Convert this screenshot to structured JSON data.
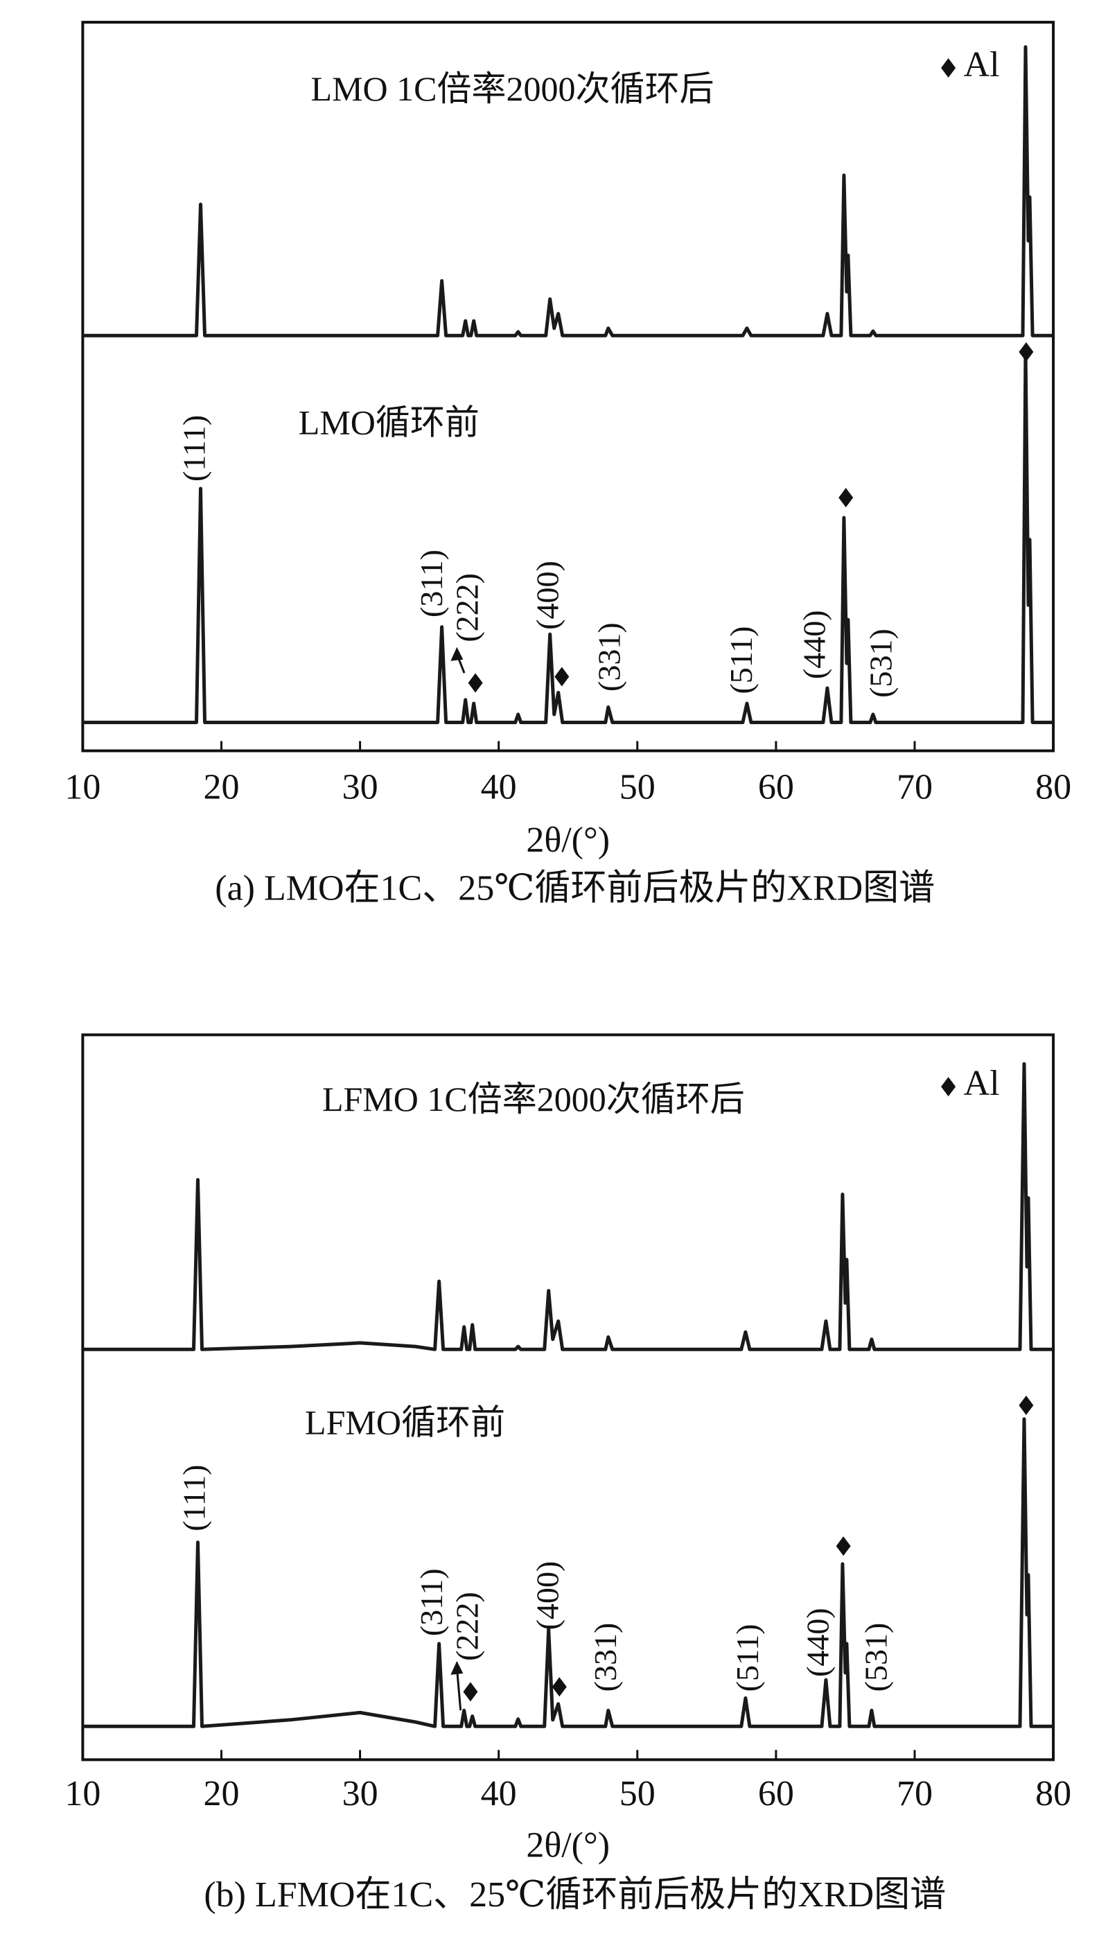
{
  "chart_data": [
    {
      "type": "line",
      "x": [
        10,
        18.2,
        18.5,
        18.8,
        35.6,
        35.9,
        36.2,
        37.4,
        37.6,
        37.8,
        38.0,
        38.2,
        38.4,
        41.2,
        41.4,
        41.6,
        43.4,
        43.7,
        44.0,
        44.3,
        44.6,
        47.7,
        47.9,
        48.2,
        57.6,
        57.9,
        58.2,
        63.4,
        63.7,
        64.0,
        64.7,
        64.9,
        65.1,
        65.2,
        65.4,
        66.8,
        67.0,
        67.2,
        77.8,
        78.0,
        78.2,
        78.3,
        78.5,
        80
      ],
      "series": [
        {
          "name": "LMO  1C倍率2000次循环后",
          "color": "#1a1a1a",
          "values": [
            57,
            57,
            75,
            57,
            57,
            64.5,
            57,
            57,
            59,
            57,
            57,
            59,
            57,
            57,
            57.5,
            57,
            57,
            62,
            58,
            60,
            57,
            57,
            58,
            57,
            57,
            58,
            57,
            57,
            60,
            57,
            57,
            79,
            63,
            68,
            57,
            57,
            57.6,
            57,
            57,
            96.6,
            70,
            76,
            57,
            57
          ]
        },
        {
          "name": "LMO循环前",
          "color": "#1a1a1a",
          "values": [
            3.9,
            3.9,
            36,
            3.9,
            3.9,
            17,
            3.9,
            3.9,
            7,
            3.9,
            3.9,
            6.5,
            3.9,
            3.9,
            5,
            3.9,
            3.9,
            16,
            5,
            8,
            3.9,
            3.9,
            6,
            3.9,
            3.9,
            6.5,
            3.9,
            3.9,
            8.6,
            3.9,
            3.9,
            32,
            12,
            18,
            3.9,
            3.9,
            5,
            3.9,
            3.9,
            55,
            20,
            29,
            3.9,
            3.9
          ]
        }
      ],
      "xlim": [
        10,
        80
      ],
      "xticks": [
        10,
        20,
        30,
        40,
        50,
        60,
        70,
        80
      ],
      "ylim": [
        0,
        100
      ],
      "xlabel": "2θ/(°)",
      "caption": "(a) LMO在1C、25℃循环前后极片的XRD图谱",
      "annotations": [
        "(111)",
        "(311)",
        "(222)",
        "(400)",
        "(331)",
        "(511)",
        "(440)",
        "(531)"
      ],
      "legend": {
        "label": "Al",
        "position": "upper right"
      }
    },
    {
      "type": "line",
      "x": [
        10,
        18.0,
        18.3,
        18.6,
        25,
        30,
        34,
        35.4,
        35.7,
        36.0,
        37.3,
        37.5,
        37.7,
        37.9,
        38.1,
        38.3,
        41.2,
        41.4,
        41.6,
        43.3,
        43.6,
        43.9,
        44.3,
        44.6,
        47.7,
        47.9,
        48.2,
        57.5,
        57.8,
        58.1,
        63.3,
        63.6,
        63.9,
        64.6,
        64.8,
        65.0,
        65.1,
        65.3,
        66.7,
        66.9,
        67.1,
        77.6,
        77.9,
        78.1,
        78.2,
        78.4,
        80
      ],
      "series": [
        {
          "name": "LFMO  1C倍率2000次循环后",
          "color": "#1a1a1a",
          "values": [
            56.6,
            56.6,
            80,
            56.6,
            57,
            57.5,
            57,
            56.6,
            66,
            56.6,
            56.6,
            59.7,
            56.6,
            56.6,
            60,
            56.6,
            56.6,
            57,
            56.6,
            56.6,
            64.7,
            58,
            60.5,
            56.6,
            56.6,
            58.3,
            56.6,
            56.6,
            59,
            56.6,
            56.6,
            60.5,
            56.6,
            56.6,
            78,
            63,
            69,
            56.6,
            56.6,
            58,
            56.6,
            56.6,
            96,
            68,
            77.5,
            56.6,
            56.6
          ]
        },
        {
          "name": "LFMO循环前",
          "color": "#1a1a1a",
          "values": [
            4.6,
            4.6,
            30,
            4.6,
            5.5,
            6.5,
            5.2,
            4.6,
            16,
            4.6,
            4.6,
            6.8,
            4.6,
            4.6,
            6,
            4.6,
            4.6,
            5.6,
            4.6,
            4.6,
            18,
            5.5,
            7.7,
            4.6,
            4.6,
            6.8,
            4.6,
            4.6,
            8.5,
            4.6,
            4.6,
            11,
            4.6,
            4.6,
            27,
            12,
            16,
            4.6,
            4.6,
            6.8,
            4.6,
            4.6,
            47,
            20,
            25.5,
            4.6,
            4.6
          ]
        }
      ],
      "xlim": [
        10,
        80
      ],
      "xticks": [
        10,
        20,
        30,
        40,
        50,
        60,
        70,
        80
      ],
      "ylim": [
        0,
        100
      ],
      "xlabel": "2θ/(°)",
      "caption": "(b) LFMO在1C、25℃循环前后极片的XRD图谱",
      "annotations": [
        "(111)",
        "(311)",
        "(222)",
        "(400)",
        "(331)",
        "(511)",
        "(440)",
        "(531)"
      ],
      "legend": {
        "label": "Al",
        "position": "upper right"
      }
    }
  ]
}
